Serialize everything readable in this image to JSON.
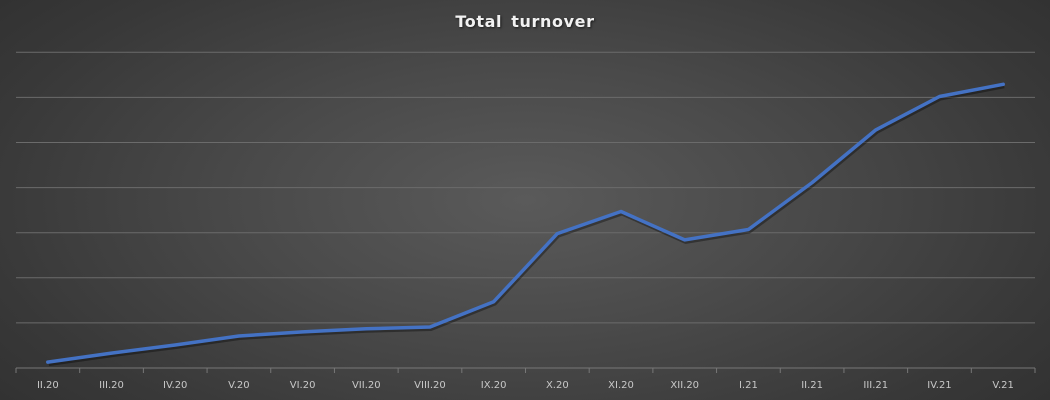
{
  "chart": {
    "title": "Total turnover",
    "line_color": "#4472C4",
    "background": "#484848"
  },
  "chart_data": {
    "type": "line",
    "title": "Total turnover",
    "xlabel": "",
    "ylabel": "",
    "categories": [
      "II.20",
      "III.20",
      "IV.20",
      "V.20",
      "VI.20",
      "VII.20",
      "VIII.20",
      "IX.20",
      "X.20",
      "XI.20",
      "XII.20",
      "I.21",
      "II.21",
      "III.21",
      "IV.21",
      "V.21"
    ],
    "series": [
      {
        "name": "Total turnover",
        "values": [
          0.13,
          0.33,
          0.51,
          0.71,
          0.8,
          0.87,
          0.91,
          1.47,
          2.98,
          3.47,
          2.84,
          3.07,
          4.11,
          5.28,
          6.02,
          6.29
        ]
      }
    ],
    "ylim": [
      0,
      7
    ],
    "y_ticks_labeled": false,
    "grid": true,
    "legend": "none"
  }
}
